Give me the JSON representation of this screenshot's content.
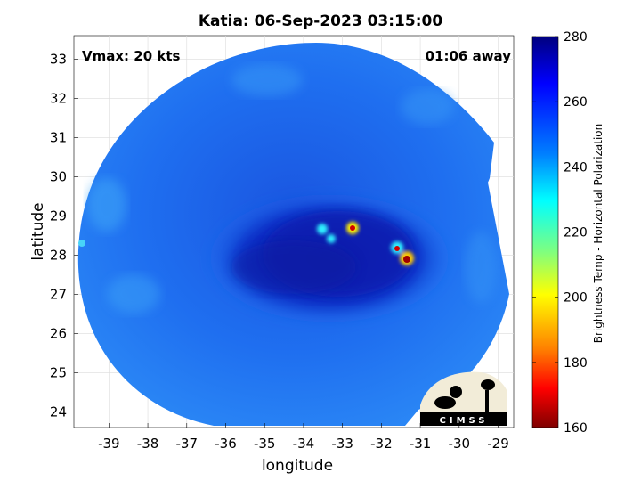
{
  "title": "Katia: 06-Sep-2023 03:15:00",
  "annotations": {
    "vmax": "Vmax: 20 kts",
    "time_away": "01:06 away"
  },
  "axes": {
    "xlabel": "longitude",
    "ylabel": "latitude",
    "x_ticks": [
      "-39",
      "-38",
      "-37",
      "-36",
      "-35",
      "-34",
      "-33",
      "-32",
      "-31",
      "-30",
      "-29"
    ],
    "y_ticks": [
      "33",
      "32",
      "31",
      "30",
      "29",
      "28",
      "27",
      "26",
      "25",
      "24"
    ],
    "xlim": [
      -39.9,
      -28.6
    ],
    "ylim": [
      23.6,
      33.6
    ]
  },
  "colorbar": {
    "label": "Brightness Temp - Horizontal Polarization",
    "ticks": [
      "280",
      "260",
      "240",
      "220",
      "200",
      "180",
      "160"
    ],
    "range": [
      160,
      280
    ],
    "colormap": "jet"
  },
  "logo": {
    "text": "CIMSS"
  },
  "colors": {
    "background_scan": "#1f6ff0",
    "dark_core": "#0e22b8",
    "hot_spot": "#c00000"
  }
}
